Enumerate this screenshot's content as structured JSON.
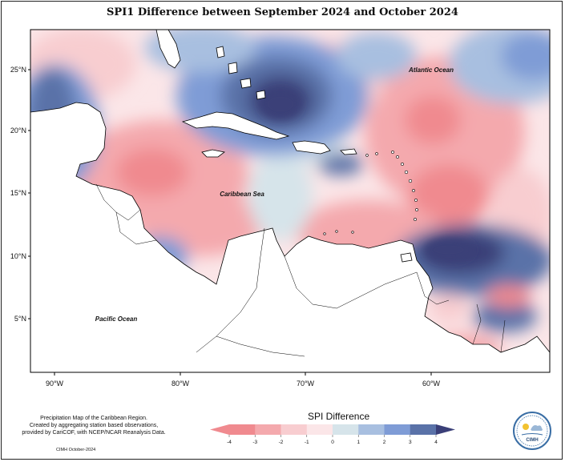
{
  "title": "SPI1 Difference between September 2024 and October 2024",
  "map": {
    "lat_labels": [
      "25°N",
      "20°N",
      "15°N",
      "10°N",
      "5°N"
    ],
    "lon_labels": [
      "90°W",
      "80°W",
      "70°W",
      "60°W"
    ],
    "place_labels": {
      "atlantic": "Atlantic Ocean",
      "caribbean": "Caribbean Sea",
      "pacific": "Pacific Ocean"
    }
  },
  "legend": {
    "title": "SPI Difference",
    "ticks": [
      "-4",
      "-3",
      "-2",
      "-1",
      "0",
      "1",
      "2",
      "3",
      "4"
    ],
    "colors": [
      "#f08a8f",
      "#f4a9ad",
      "#f8cdd0",
      "#fbe6e8",
      "#d6e4ea",
      "#a8bfe0",
      "#7f9cd6",
      "#5a72a8",
      "#3a3f78"
    ]
  },
  "credits": {
    "line1": "Precipitation Map of the Caribbean Region.",
    "line2": "Created by aggregating station based observations,",
    "line3": "provided by CariCOF, with NCEP/NCAR Reanalysis Data.",
    "date": "CIMH October-2024"
  },
  "logo": {
    "text": "CIMH"
  }
}
